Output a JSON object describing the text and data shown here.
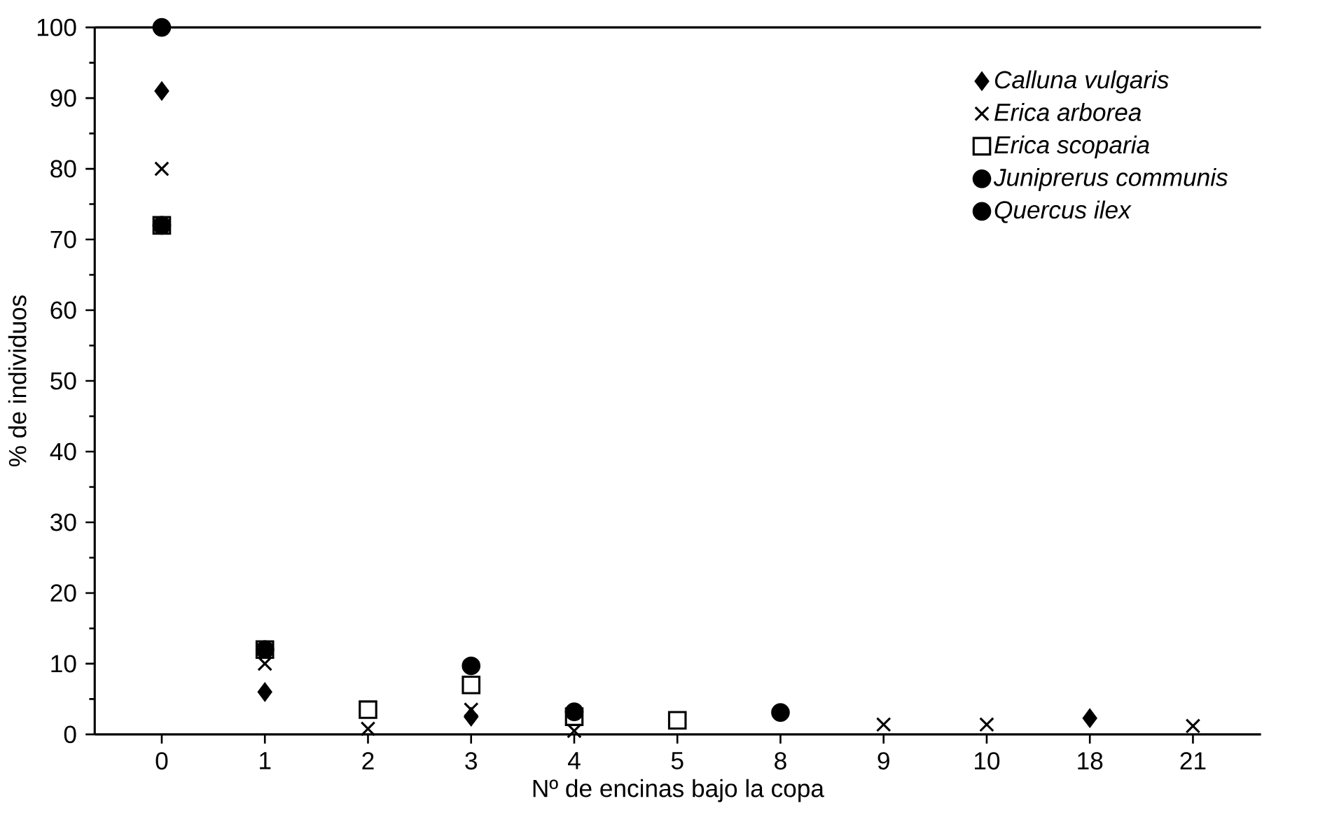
{
  "chart_data": {
    "type": "scatter",
    "xlabel": "Nº de encinas bajo la copa",
    "ylabel": "% de individuos",
    "categories": [
      "0",
      "1",
      "2",
      "3",
      "4",
      "5",
      "8",
      "9",
      "10",
      "18",
      "21"
    ],
    "ylim": [
      0,
      100
    ],
    "yticks": [
      0,
      10,
      20,
      30,
      40,
      50,
      60,
      70,
      80,
      90,
      100
    ],
    "legend": "top right",
    "series": [
      {
        "name": "Calluna vulgaris",
        "color": "#000000",
        "marker": "diamond",
        "values": [
          91,
          6,
          null,
          2.5,
          null,
          null,
          null,
          null,
          null,
          2.3,
          null
        ]
      },
      {
        "name": "Erica arborea",
        "color": "#000000",
        "marker": "cross",
        "values": [
          80,
          10,
          0.8,
          3.5,
          0.5,
          null,
          null,
          1.4,
          1.4,
          null,
          1.2
        ]
      },
      {
        "name": "Erica scoparia",
        "color": "#000000",
        "marker": "square",
        "values": [
          72,
          12,
          3.5,
          7,
          2.5,
          2,
          null,
          null,
          null,
          null,
          null
        ]
      },
      {
        "name": "Juniprerus communis",
        "color": "#000000",
        "marker": "circle",
        "values": [
          72,
          12,
          null,
          9.7,
          3.2,
          null,
          3.1,
          null,
          null,
          null,
          null
        ]
      },
      {
        "name": "Quercus ilex",
        "color": "#000000",
        "marker": "circle",
        "values": [
          100,
          null,
          null,
          null,
          null,
          null,
          null,
          null,
          null,
          null,
          null
        ]
      }
    ]
  }
}
